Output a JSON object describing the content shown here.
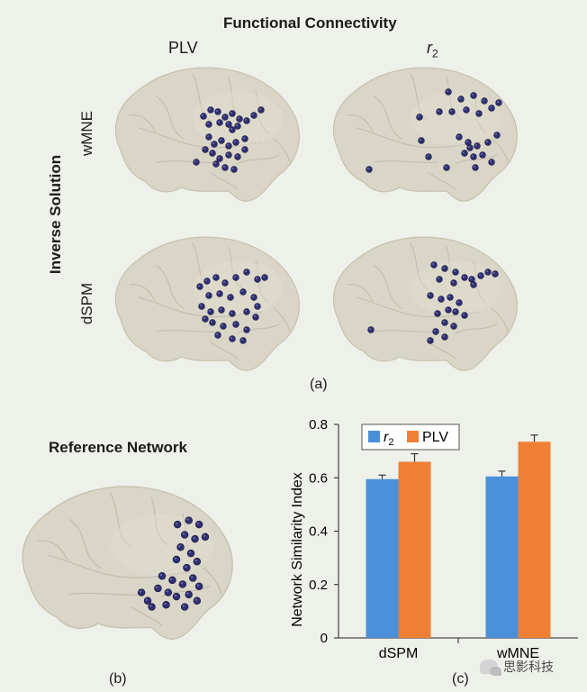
{
  "header": {
    "title": "Functional Connectivity",
    "col_left": "PLV",
    "col_right_main": "r",
    "col_right_sub": "2"
  },
  "left_axis": {
    "title": "Inverse Solution",
    "row_top": "wMNE",
    "row_bottom": "dSPM"
  },
  "panel_labels": {
    "a": "(a)",
    "b": "(b)",
    "c": "(c)"
  },
  "reference": {
    "title": "Reference Network"
  },
  "watermark": {
    "text": "思影科技"
  },
  "colors": {
    "brain_fill": "#d9d6c7",
    "brain_stroke": "#c7c1ad",
    "node": "#2f2f72",
    "bar_r2": "#4a90d9",
    "bar_plv": "#ef7f34",
    "background": "#eef0ea"
  },
  "chart_data": {
    "type": "bar",
    "categories": [
      "dSPM",
      "wMNE"
    ],
    "series": [
      {
        "name_main": "r",
        "name_sub": "2",
        "values": [
          0.595,
          0.605
        ],
        "errors": [
          0.015,
          0.02
        ],
        "color": "#4a90d9"
      },
      {
        "name_main": "PLV",
        "values": [
          0.66,
          0.735
        ],
        "errors": [
          0.03,
          0.025
        ],
        "color": "#ef7f34"
      }
    ],
    "ylabel": "Network Similarity Index",
    "ylim": [
      0,
      0.8
    ],
    "yticks": [
      0,
      0.2,
      0.4,
      0.6,
      0.8
    ],
    "ytick_labels": [
      "0",
      "0.2",
      "0.4",
      "0.6",
      "0.8"
    ],
    "legend_position": "top-left"
  }
}
